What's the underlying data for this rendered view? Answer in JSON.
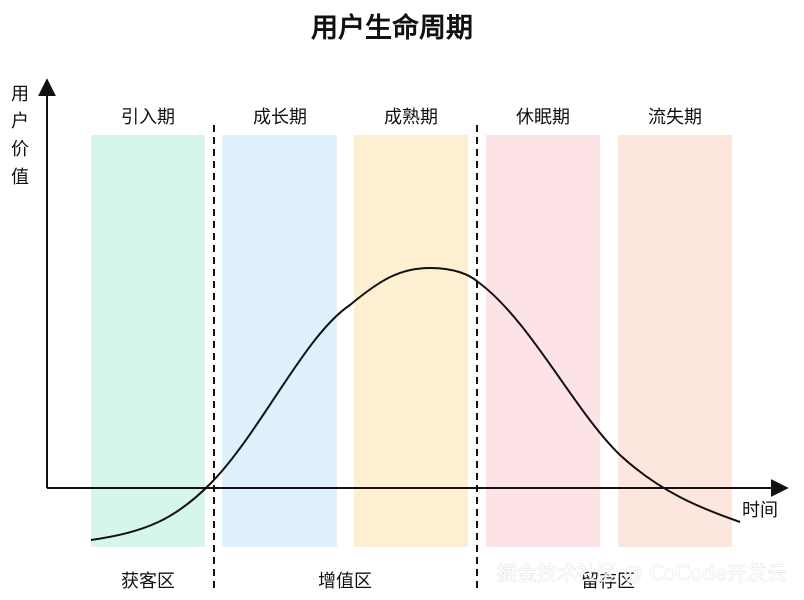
{
  "title": "用户生命周期",
  "y_axis_label": [
    "用",
    "户",
    "价",
    "值"
  ],
  "x_axis_label": "时间",
  "phases": [
    {
      "label": "引入期",
      "color": "#d6f6ea"
    },
    {
      "label": "成长期",
      "color": "#dff1fd"
    },
    {
      "label": "成熟期",
      "color": "#fdf0d2"
    },
    {
      "label": "休眠期",
      "color": "#fde3e6"
    },
    {
      "label": "流失期",
      "color": "#fde6dd"
    }
  ],
  "zones": [
    "获客区",
    "增值区",
    "留存区"
  ],
  "watermark": "掘金技术社区 @ CoCode开发云",
  "colors": {
    "axis": "#111111",
    "curve": "#111111",
    "divider": "#111111"
  }
}
